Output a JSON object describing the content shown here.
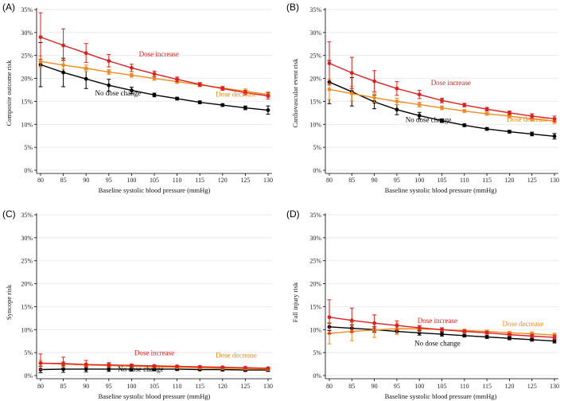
{
  "figure": {
    "panel_ids": [
      "A",
      "B",
      "C",
      "D"
    ]
  },
  "colors": {
    "increase": "#e01e1e",
    "decrease": "#f08a1c",
    "nochange": "#000000"
  },
  "chart_data": [
    {
      "id": "A",
      "panel_label": "(A)",
      "type": "line",
      "xlabel": "Baseline systolic blood pressure (mmHg)",
      "ylabel": "Composite outcome risk",
      "x": [
        80,
        85,
        90,
        95,
        100,
        105,
        110,
        115,
        120,
        125,
        130
      ],
      "xticks": [
        "80",
        "85",
        "90",
        "95",
        "100",
        "105",
        "110",
        "115",
        "120",
        "125",
        "130"
      ],
      "yticks": [
        "0%",
        "5%",
        "10%",
        "15%",
        "20%",
        "25%",
        "30%",
        "35%"
      ],
      "ylim": [
        0,
        35
      ],
      "grid": true,
      "series": [
        {
          "key": "increase",
          "name": "Dose increase",
          "values": [
            29.0,
            27.2,
            25.5,
            23.8,
            22.3,
            21.0,
            19.8,
            18.7,
            17.8,
            16.9,
            16.2
          ],
          "lower": [
            24.2,
            24.0,
            23.5,
            22.5,
            21.5,
            20.4,
            19.3,
            18.3,
            17.4,
            16.4,
            15.5
          ],
          "upper": [
            34.3,
            30.8,
            27.6,
            25.2,
            23.1,
            21.6,
            20.3,
            19.1,
            18.2,
            17.4,
            16.9
          ]
        },
        {
          "key": "decrease",
          "name": "Dose decrease",
          "values": [
            23.7,
            22.9,
            22.2,
            21.4,
            20.7,
            20.0,
            19.3,
            18.6,
            17.9,
            17.2,
            16.5
          ],
          "lower": [
            22.5,
            22.0,
            21.5,
            20.9,
            20.3,
            19.6,
            18.9,
            18.2,
            17.5,
            16.7,
            15.9
          ],
          "upper": [
            24.9,
            23.8,
            22.9,
            21.9,
            21.1,
            20.4,
            19.7,
            19.0,
            18.3,
            17.7,
            17.1
          ]
        },
        {
          "key": "nochange",
          "name": "No dose change",
          "values": [
            23.0,
            21.3,
            19.9,
            18.5,
            17.4,
            16.4,
            15.6,
            14.8,
            14.2,
            13.6,
            13.1
          ],
          "lower": [
            18.2,
            18.2,
            17.8,
            17.2,
            16.7,
            16.0,
            15.3,
            14.5,
            13.9,
            13.2,
            12.2
          ],
          "upper": [
            27.8,
            24.4,
            22.0,
            19.8,
            18.1,
            16.8,
            15.9,
            15.1,
            14.5,
            14.0,
            14.0
          ]
        }
      ],
      "annotations": [
        {
          "series": "increase",
          "text": "Dose increase",
          "x": 106,
          "y": 24.8
        },
        {
          "series": "decrease",
          "text": "Dose decrease",
          "x": 123,
          "y": 16.0
        },
        {
          "series": "nochange",
          "text": "No dose change",
          "x": 97,
          "y": 16.3
        }
      ]
    },
    {
      "id": "B",
      "panel_label": "(B)",
      "type": "line",
      "xlabel": "Baseline systolic blood pressure (mmHg)",
      "ylabel": "Cardiovascular event risk",
      "x": [
        80,
        85,
        90,
        95,
        100,
        105,
        110,
        115,
        120,
        125,
        130
      ],
      "xticks": [
        "80",
        "85",
        "90",
        "95",
        "100",
        "105",
        "110",
        "115",
        "120",
        "125",
        "130"
      ],
      "yticks": [
        "0%",
        "5%",
        "10%",
        "15%",
        "20%",
        "25%",
        "30%",
        "35%"
      ],
      "ylim": [
        0,
        35
      ],
      "grid": true,
      "series": [
        {
          "key": "increase",
          "name": "Dose increase",
          "values": [
            23.3,
            21.2,
            19.4,
            17.8,
            16.5,
            15.2,
            14.2,
            13.3,
            12.5,
            11.8,
            11.2
          ],
          "lower": [
            18.6,
            17.8,
            17.1,
            16.3,
            15.6,
            14.7,
            13.8,
            12.9,
            12.1,
            11.3,
            10.6
          ],
          "upper": [
            28.0,
            24.6,
            21.7,
            19.3,
            17.4,
            15.7,
            14.6,
            13.7,
            12.9,
            12.3,
            11.8
          ]
        },
        {
          "key": "decrease",
          "name": "Dose decrease",
          "values": [
            17.6,
            16.7,
            15.8,
            15.0,
            14.3,
            13.6,
            12.9,
            12.3,
            11.8,
            11.2,
            10.7
          ],
          "lower": [
            15.4,
            15.1,
            14.8,
            14.3,
            13.8,
            13.2,
            12.6,
            12.0,
            11.4,
            10.8,
            10.2
          ],
          "upper": [
            19.8,
            18.3,
            16.8,
            15.7,
            14.8,
            14.0,
            13.2,
            12.6,
            12.2,
            11.6,
            11.2
          ]
        },
        {
          "key": "nochange",
          "name": "No dose change",
          "values": [
            19.2,
            17.1,
            14.9,
            13.2,
            11.9,
            10.8,
            9.8,
            9.0,
            8.4,
            7.9,
            7.4
          ],
          "lower": [
            14.5,
            14.0,
            13.4,
            12.1,
            11.2,
            10.4,
            9.5,
            8.7,
            8.1,
            7.5,
            6.8
          ],
          "upper": [
            23.9,
            20.2,
            16.4,
            14.3,
            12.6,
            11.2,
            10.1,
            9.3,
            8.7,
            8.3,
            8.0
          ]
        }
      ],
      "annotations": [
        {
          "series": "increase",
          "text": "Dose increase",
          "x": 107,
          "y": 18.5
        },
        {
          "series": "decrease",
          "text": "Dose decrease",
          "x": 124,
          "y": 10.6
        },
        {
          "series": "nochange",
          "text": "No dose change",
          "x": 102,
          "y": 10.5
        }
      ]
    },
    {
      "id": "C",
      "panel_label": "(C)",
      "type": "line",
      "xlabel": "Baseline systolic blood pressure (mmHg)",
      "ylabel": "Syncope risk",
      "x": [
        80,
        85,
        90,
        95,
        100,
        105,
        110,
        115,
        120,
        125,
        130
      ],
      "xticks": [
        "80",
        "85",
        "90",
        "95",
        "100",
        "105",
        "110",
        "115",
        "120",
        "125",
        "130"
      ],
      "yticks": [
        "0%",
        "5%",
        "10%",
        "15%",
        "20%",
        "25%",
        "30%",
        "35%"
      ],
      "ylim": [
        0,
        35
      ],
      "grid": true,
      "series": [
        {
          "key": "increase",
          "name": "Dose increase",
          "values": [
            2.7,
            2.6,
            2.4,
            2.3,
            2.2,
            2.1,
            2.0,
            1.9,
            1.8,
            1.7,
            1.6
          ],
          "lower": [
            1.3,
            1.7,
            1.8,
            1.9,
            1.9,
            1.9,
            1.8,
            1.7,
            1.6,
            1.5,
            1.4
          ],
          "upper": [
            4.7,
            4.0,
            3.3,
            2.8,
            2.5,
            2.3,
            2.2,
            2.1,
            2.0,
            1.9,
            1.8
          ]
        },
        {
          "key": "decrease",
          "name": "Dose decrease",
          "values": [
            2.7,
            2.5,
            2.3,
            2.2,
            2.0,
            1.9,
            1.8,
            1.7,
            1.6,
            1.5,
            1.4
          ],
          "lower": [
            2.1,
            2.0,
            1.9,
            1.8,
            1.7,
            1.7,
            1.6,
            1.5,
            1.4,
            1.3,
            1.2
          ],
          "upper": [
            3.3,
            3.0,
            2.7,
            2.6,
            2.3,
            2.1,
            2.0,
            1.9,
            1.8,
            1.7,
            1.6
          ]
        },
        {
          "key": "nochange",
          "name": "No dose change",
          "values": [
            1.3,
            1.4,
            1.4,
            1.4,
            1.4,
            1.4,
            1.4,
            1.3,
            1.3,
            1.2,
            1.2
          ],
          "lower": [
            0.6,
            0.7,
            0.8,
            0.9,
            1.0,
            1.1,
            1.1,
            1.1,
            1.0,
            0.9,
            0.9
          ],
          "upper": [
            2.0,
            2.1,
            2.0,
            1.9,
            1.8,
            1.7,
            1.7,
            1.6,
            1.6,
            1.5,
            1.5
          ]
        }
      ],
      "annotations": [
        {
          "series": "increase",
          "text": "Dose increase",
          "x": 105,
          "y": 4.4
        },
        {
          "series": "decrease",
          "text": "Dose decrease",
          "x": 123,
          "y": 3.9
        },
        {
          "series": "nochange",
          "text": "No dose change",
          "x": 102,
          "y": 0.9
        }
      ]
    },
    {
      "id": "D",
      "panel_label": "(D)",
      "type": "line",
      "xlabel": "Baseline systolic blood pressure (mmHg)",
      "ylabel": "Fall injury risk",
      "x": [
        80,
        85,
        90,
        95,
        100,
        105,
        110,
        115,
        120,
        125,
        130
      ],
      "xticks": [
        "80",
        "85",
        "90",
        "95",
        "100",
        "105",
        "110",
        "115",
        "120",
        "125",
        "130"
      ],
      "yticks": [
        "0%",
        "5%",
        "10%",
        "15%",
        "20%",
        "25%",
        "30%",
        "35%"
      ],
      "ylim": [
        0,
        35
      ],
      "grid": true,
      "series": [
        {
          "key": "increase",
          "name": "Dose increase",
          "values": [
            12.7,
            12.0,
            11.4,
            10.9,
            10.4,
            10.0,
            9.6,
            9.3,
            8.9,
            8.6,
            8.3
          ],
          "lower": [
            9.1,
            9.4,
            9.7,
            9.9,
            9.9,
            9.6,
            9.3,
            9.0,
            8.6,
            8.2,
            7.8
          ],
          "upper": [
            16.5,
            14.7,
            13.2,
            11.9,
            10.9,
            10.4,
            9.9,
            9.6,
            9.2,
            9.0,
            8.8
          ]
        },
        {
          "key": "decrease",
          "name": "Dose decrease",
          "values": [
            9.2,
            9.6,
            9.9,
            10.2,
            10.2,
            10.0,
            9.8,
            9.6,
            9.3,
            9.1,
            8.8
          ],
          "lower": [
            6.9,
            7.6,
            8.3,
            9.0,
            9.5,
            9.6,
            9.5,
            9.3,
            9.0,
            8.7,
            8.4
          ],
          "upper": [
            11.5,
            11.6,
            11.5,
            11.4,
            10.9,
            10.4,
            10.1,
            9.9,
            9.6,
            9.5,
            9.2
          ]
        },
        {
          "key": "nochange",
          "name": "No dose change",
          "values": [
            10.6,
            10.3,
            10.0,
            9.6,
            9.3,
            9.0,
            8.7,
            8.4,
            8.1,
            7.8,
            7.5
          ],
          "lower": [
            9.8,
            9.6,
            9.4,
            9.0,
            8.8,
            8.6,
            8.4,
            8.1,
            7.8,
            7.5,
            7.1
          ],
          "upper": [
            11.4,
            11.0,
            10.6,
            10.2,
            9.8,
            9.4,
            9.0,
            8.7,
            8.4,
            8.1,
            7.9
          ]
        }
      ],
      "annotations": [
        {
          "series": "increase",
          "text": "Dose increase",
          "x": 104,
          "y": 11.4
        },
        {
          "series": "decrease",
          "text": "Dose decrease",
          "x": 123,
          "y": 10.7
        },
        {
          "series": "nochange",
          "text": "No dose change",
          "x": 104,
          "y": 6.5
        }
      ]
    }
  ]
}
